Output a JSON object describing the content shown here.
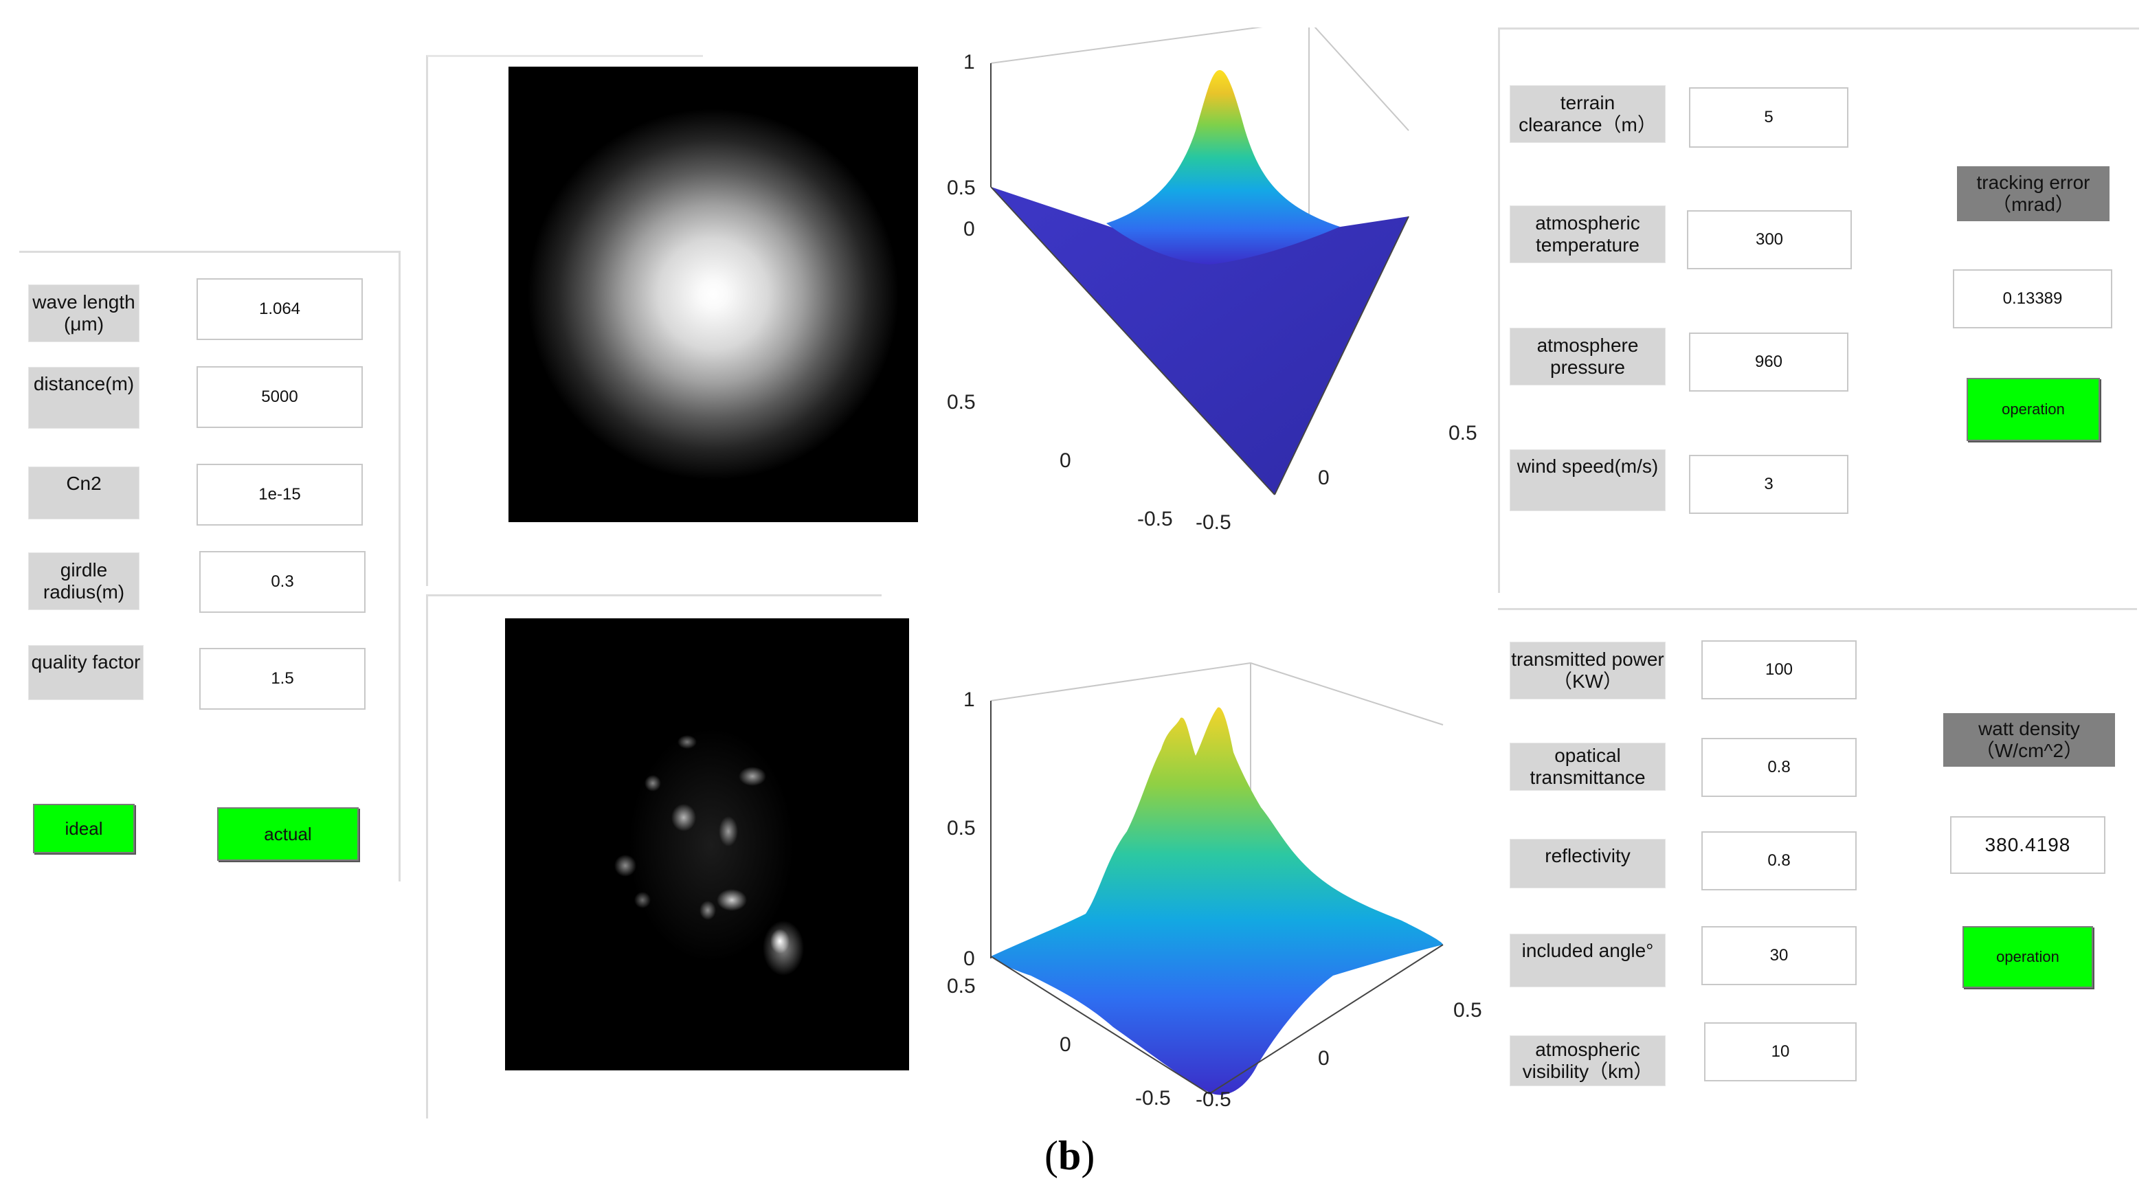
{
  "left_panel": {
    "fields": [
      {
        "label": "wave length\n(μm)",
        "value": "1.064"
      },
      {
        "label": "distance(m)",
        "value": "5000"
      },
      {
        "label": "Cn2",
        "value": "1e-15"
      },
      {
        "label": "girdle\nradius(m)",
        "value": "0.3"
      },
      {
        "label": "quality factor",
        "value": "1.5"
      }
    ],
    "ideal_button": "ideal",
    "actual_button": "actual"
  },
  "plots": {
    "ticks": {
      "z": [
        "1",
        "0.5",
        "0"
      ],
      "left_axis": [
        "0.5",
        "0",
        "-0.5"
      ],
      "right_axis": [
        "-0.5",
        "0",
        "0.5"
      ]
    }
  },
  "top_right_panel": {
    "fields": [
      {
        "label": "terrain\nclearance（m）",
        "value": "5"
      },
      {
        "label": "atmospheric\ntemperature",
        "value": "300"
      },
      {
        "label": "atmosphere\npressure",
        "value": "960"
      },
      {
        "label": "wind speed(m/s)",
        "value": "3"
      }
    ],
    "result_label": "tracking error\n（mrad）",
    "result_value": "0.13389",
    "operation_button": "operation"
  },
  "bottom_right_panel": {
    "fields": [
      {
        "label": "transmitted power\n（KW）",
        "value": "100"
      },
      {
        "label": "opatical\ntransmittance",
        "value": "0.8"
      },
      {
        "label": "reflectivity",
        "value": "0.8"
      },
      {
        "label": "included angle°",
        "value": "30"
      },
      {
        "label": "atmospheric\nvisibility（km）",
        "value": "10"
      }
    ],
    "result_label": "watt density\n（W/cm^2）",
    "result_value": "380.4198",
    "operation_button": "operation"
  },
  "caption": {
    "open": "(",
    "letter": "b",
    "close": ")"
  },
  "colors": {
    "button": "#00ff00",
    "label_bg": "#d6d6d6",
    "result_label_bg": "#808080"
  }
}
